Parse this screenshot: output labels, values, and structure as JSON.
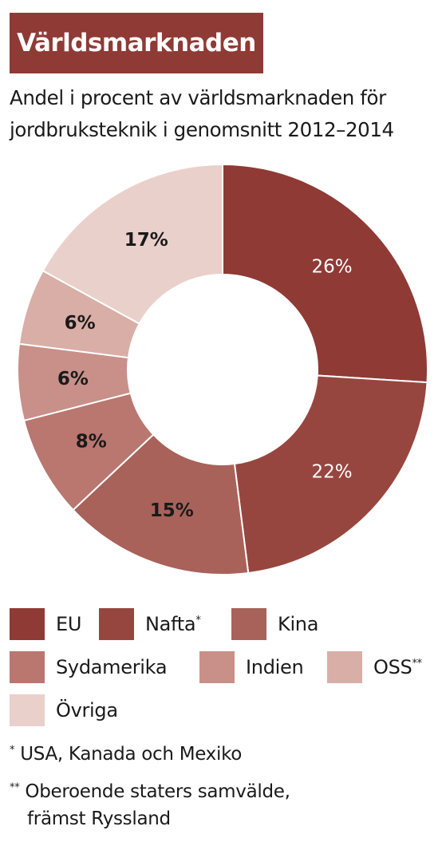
{
  "header": {
    "title": "Världsmarknaden",
    "subtitle": "Andel i procent av världsmarknaden för jordbruksteknik i genomsnitt 2012–2014"
  },
  "chart_data": {
    "type": "pie",
    "donut": true,
    "title": "Världsmarknaden",
    "subtitle": "Andel i procent av världsmarknaden för jordbruksteknik i genomsnitt 2012–2014",
    "unit": "%",
    "legend_position": "bottom",
    "slices": [
      {
        "name": "EU",
        "value": 26,
        "label": "26%",
        "color": "#8f3a35",
        "label_color": "#ffffff"
      },
      {
        "name": "Nafta",
        "value": 22,
        "label": "22%",
        "color": "#97463f",
        "label_color": "#ffffff"
      },
      {
        "name": "Kina",
        "value": 15,
        "label": "15%",
        "color": "#a8625a",
        "label_color": "#1a1a1a"
      },
      {
        "name": "Sydamerika",
        "value": 8,
        "label": "8%",
        "color": "#b9776f",
        "label_color": "#1a1a1a"
      },
      {
        "name": "Indien",
        "value": 6,
        "label": "6%",
        "color": "#c89088",
        "label_color": "#1a1a1a"
      },
      {
        "name": "OSS",
        "value": 6,
        "label": "6%",
        "color": "#d9aea7",
        "label_color": "#1a1a1a"
      },
      {
        "name": "Övriga",
        "value": 17,
        "label": "17%",
        "color": "#ead0cb",
        "label_color": "#1a1a1a"
      }
    ]
  },
  "legend": {
    "items": [
      {
        "label": "EU",
        "marker": "",
        "color": "#8f3a35"
      },
      {
        "label": "Nafta",
        "marker": "*",
        "color": "#97463f"
      },
      {
        "label": "Kina",
        "marker": "",
        "color": "#a8625a"
      },
      {
        "label": "Sydamerika",
        "marker": "",
        "color": "#b9776f"
      },
      {
        "label": "Indien",
        "marker": "",
        "color": "#c89088"
      },
      {
        "label": "OSS",
        "marker": "**",
        "color": "#d9aea7"
      },
      {
        "label": "Övriga",
        "marker": "",
        "color": "#ead0cb"
      }
    ]
  },
  "footnotes": {
    "note1_marker": "*",
    "note1_text": "USA, Kanada och Mexiko",
    "note2_marker": "**",
    "note2_line1": "Oberoende staters samvälde,",
    "note2_line2": "främst Ryssland"
  }
}
